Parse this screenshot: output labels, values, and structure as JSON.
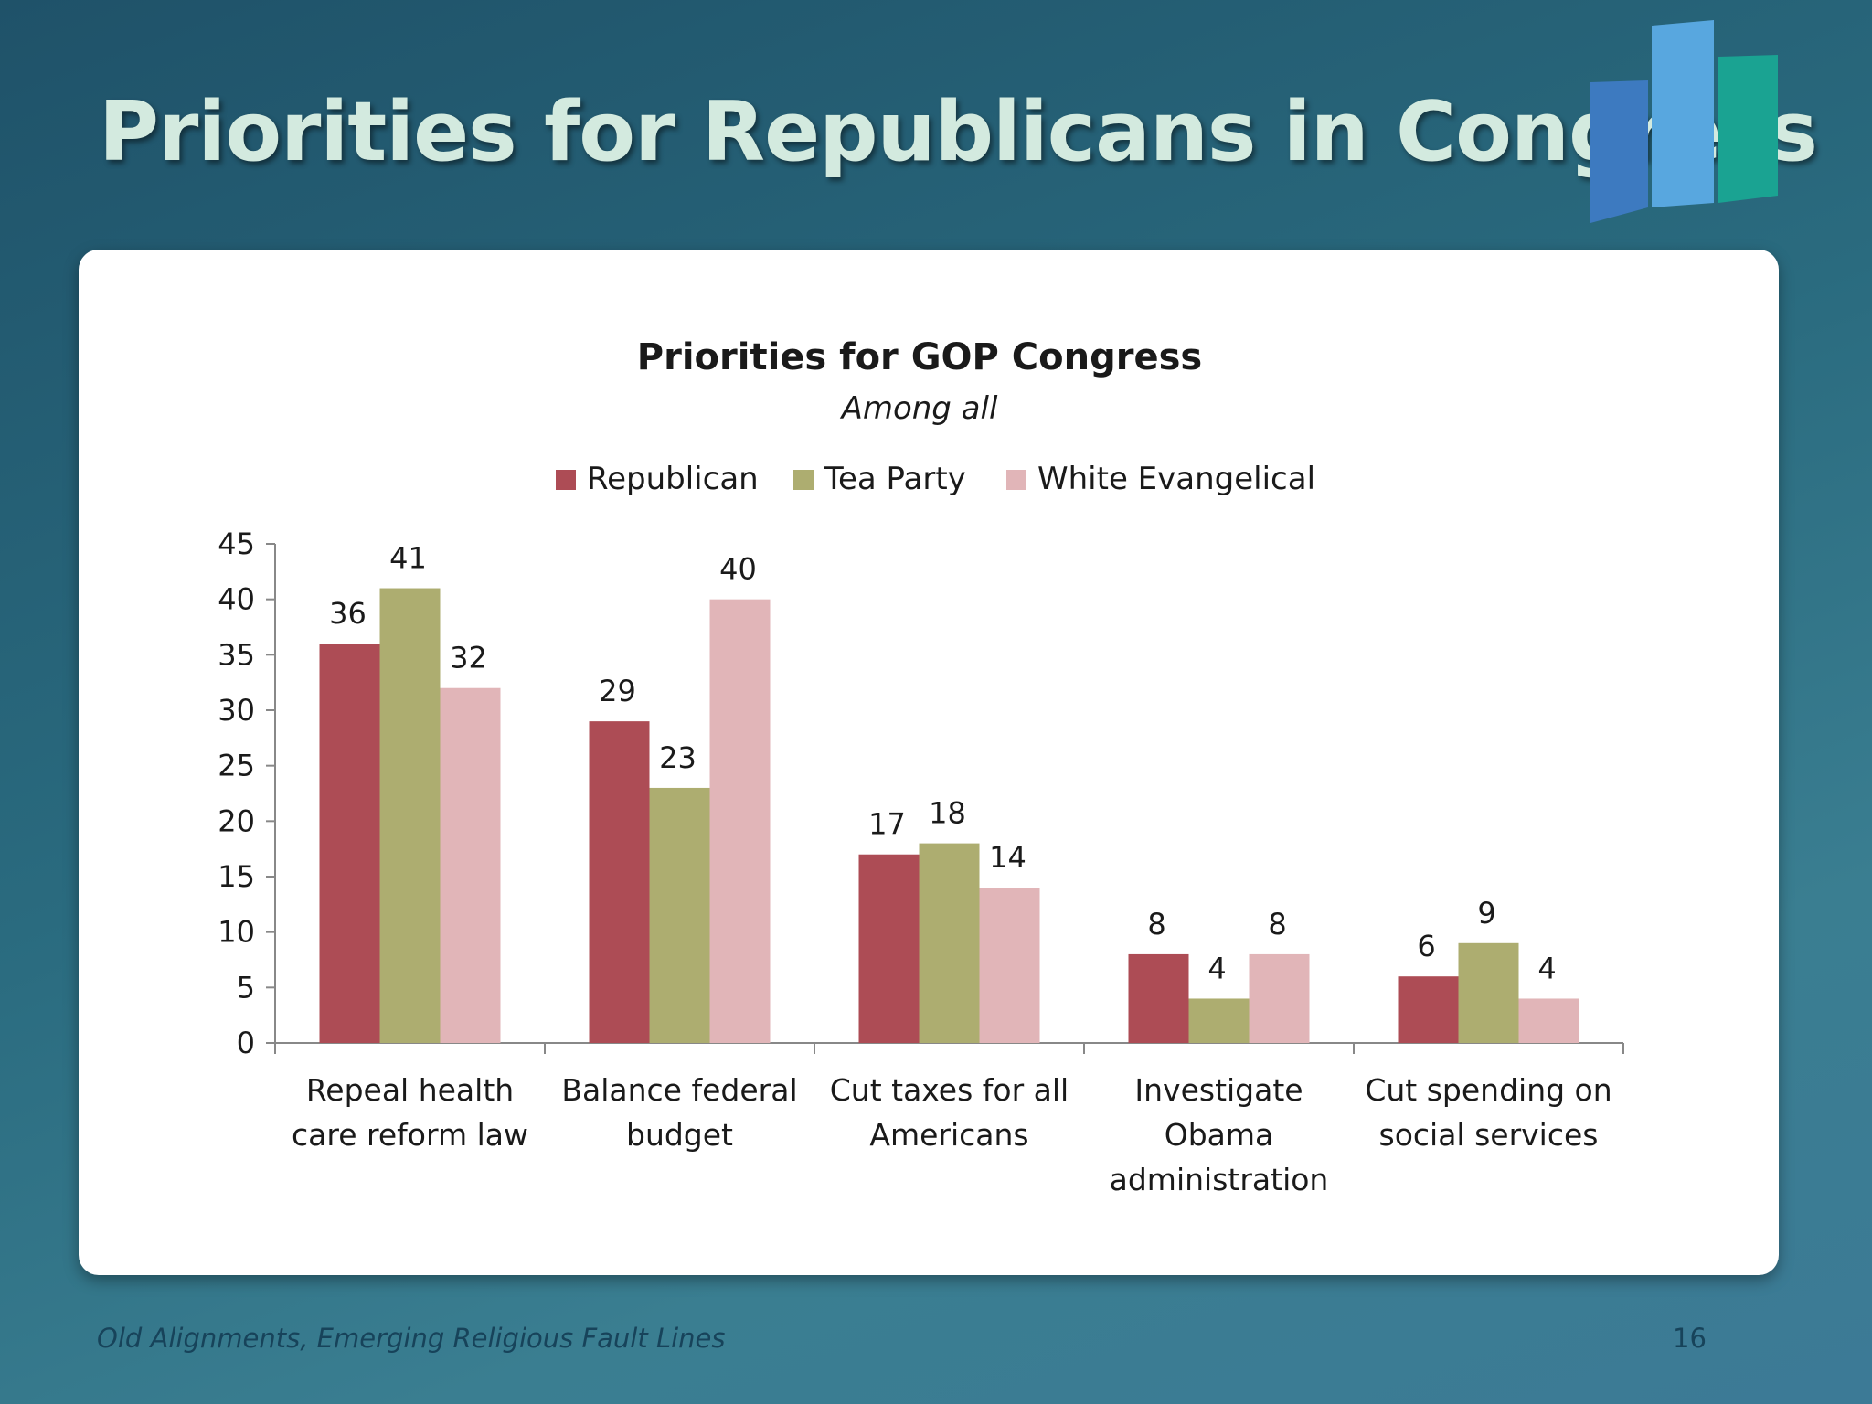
{
  "slide": {
    "title": "Priorities for Republicans in Congress",
    "footer": "Old Alignments, Emerging Religious Fault Lines",
    "page_number": "16"
  },
  "chart_data": {
    "type": "bar",
    "title": "Priorities for GOP Congress",
    "subtitle": "Among all",
    "categories": [
      [
        "Repeal health",
        "care reform law"
      ],
      [
        "Balance federal",
        "budget"
      ],
      [
        "Cut taxes for all",
        "Americans"
      ],
      [
        "Investigate",
        "Obama",
        "administration"
      ],
      [
        "Cut spending on",
        "social services"
      ]
    ],
    "series": [
      {
        "name": "Republican",
        "color": "#ad4c55",
        "values": [
          36,
          29,
          17,
          8,
          6
        ]
      },
      {
        "name": "Tea Party",
        "color": "#adad70",
        "values": [
          41,
          23,
          18,
          4,
          9
        ]
      },
      {
        "name": "White Evangelical",
        "color": "#e1b5b8",
        "values": [
          32,
          40,
          14,
          8,
          4
        ]
      }
    ],
    "ylim": [
      0,
      45
    ],
    "yticks": [
      0,
      5,
      10,
      15,
      20,
      25,
      30,
      35,
      40,
      45
    ],
    "legend_position": "top",
    "grid": false
  }
}
